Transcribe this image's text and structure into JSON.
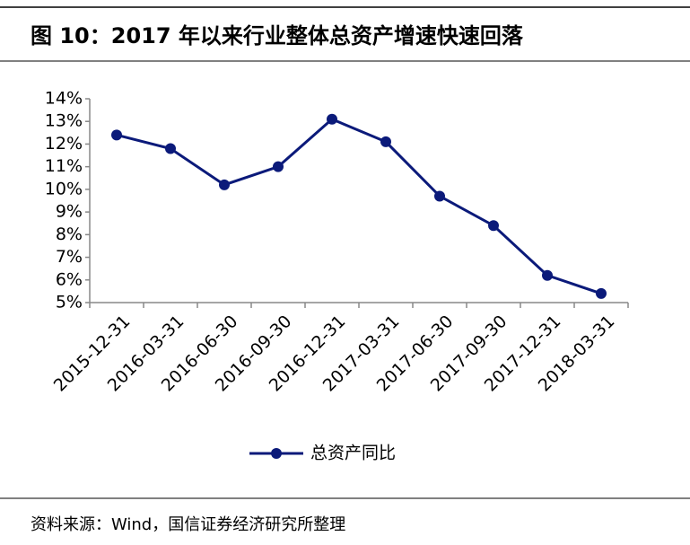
{
  "chart_data": {
    "type": "line",
    "title": "图 10：2017 年以来行业整体总资产增速快速回落",
    "categories": [
      "2015-12-31",
      "2016-03-31",
      "2016-06-30",
      "2016-09-30",
      "2016-12-31",
      "2017-03-31",
      "2017-06-30",
      "2017-09-30",
      "2017-12-31",
      "2018-03-31"
    ],
    "series": [
      {
        "name": "总资产同比",
        "color": "#0b1a7a",
        "values": [
          12.4,
          11.8,
          10.2,
          11.0,
          13.1,
          12.1,
          9.7,
          8.4,
          6.2,
          5.4
        ]
      }
    ],
    "ylim": [
      5,
      14
    ],
    "yticks": [
      {
        "value": 5,
        "label": "5%"
      },
      {
        "value": 6,
        "label": "6%"
      },
      {
        "value": 7,
        "label": "7%"
      },
      {
        "value": 8,
        "label": "8%"
      },
      {
        "value": 9,
        "label": "9%"
      },
      {
        "value": 10,
        "label": "10%"
      },
      {
        "value": 11,
        "label": "11%"
      },
      {
        "value": 12,
        "label": "12%"
      },
      {
        "value": 13,
        "label": "13%"
      },
      {
        "value": 14,
        "label": "14%"
      }
    ],
    "grid": false,
    "legend": "bottom",
    "source": "资料来源：Wind，国信证券经济研究所整理"
  }
}
